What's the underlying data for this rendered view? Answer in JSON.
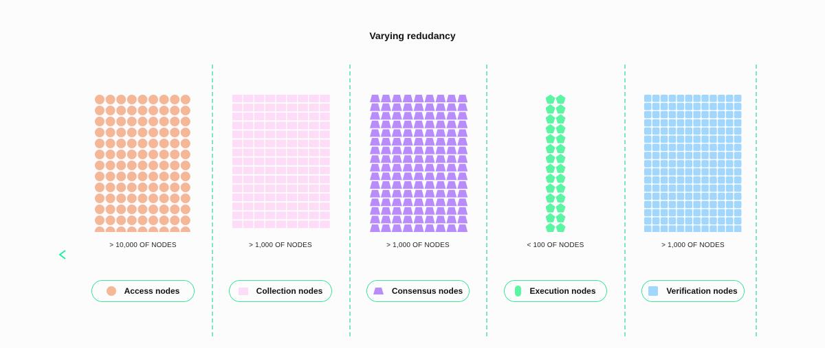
{
  "title": "Varying redudancy",
  "colors": {
    "divider": "#7de3c0",
    "arrow": "#22e08f",
    "pill_border": "#3ee79c"
  },
  "groups": [
    {
      "label": "Access nodes",
      "count_label": "> 10,000 OF NODES",
      "shape": "circle",
      "color": "#f4b797"
    },
    {
      "label": "Collection nodes",
      "count_label": "> 1,000 OF NODES",
      "shape": "rectangle",
      "color": "#fddcf8"
    },
    {
      "label": "Consensus nodes",
      "count_label": "> 1,000 OF NODES",
      "shape": "trapezoid",
      "color": "#b98cfb"
    },
    {
      "label": "Execution nodes",
      "count_label": "< 100 OF NODES",
      "shape": "pentagon",
      "color": "#5cf5a5"
    },
    {
      "label": "Verification nodes",
      "count_label": "> 1,000 OF NODES",
      "shape": "rounded-square",
      "color": "#a1d6fd"
    }
  ]
}
